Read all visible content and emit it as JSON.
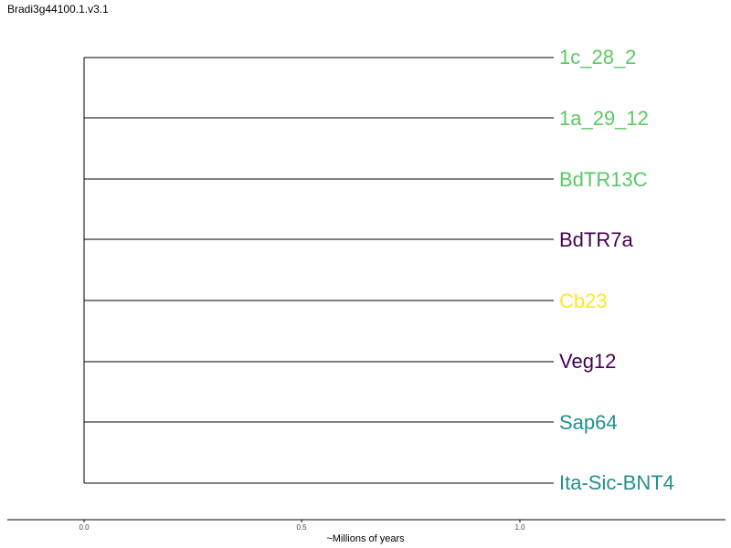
{
  "title": "Bradi3g44100.1.v3.1",
  "x_axis": {
    "label": "~Millions of years",
    "ticks": [
      "0.0",
      "0.5",
      "1.0"
    ]
  },
  "leaves": [
    {
      "name": "1c_28_2",
      "color": "#5ac864"
    },
    {
      "name": "1a_29_12",
      "color": "#5ac864"
    },
    {
      "name": "BdTR13C",
      "color": "#5ac864"
    },
    {
      "name": "BdTR7a",
      "color": "#440154"
    },
    {
      "name": "Cb23",
      "color": "#fde725"
    },
    {
      "name": "Veg12",
      "color": "#440154"
    },
    {
      "name": "Sap64",
      "color": "#21918c"
    },
    {
      "name": "Ita-Sic-BNT4",
      "color": "#21918c"
    }
  ]
}
